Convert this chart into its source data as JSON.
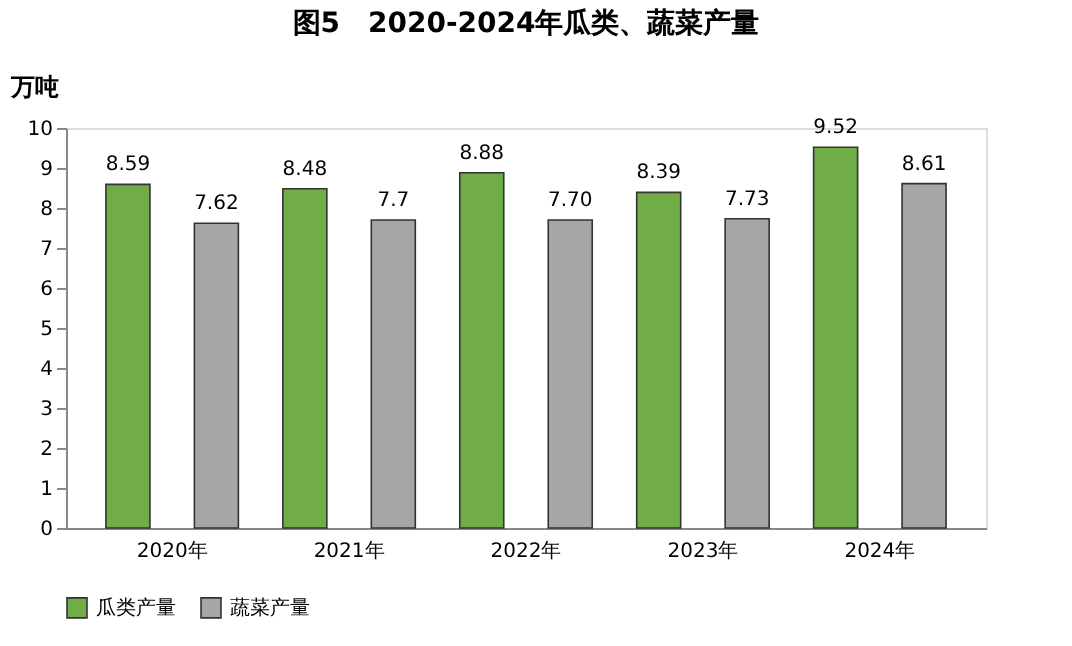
{
  "chart_data": {
    "type": "bar",
    "title": "图5　2020-2024年瓜类、蔬菜产量",
    "ylabel": "万吨",
    "categories": [
      "2020年",
      "2021年",
      "2022年",
      "2023年",
      "2024年"
    ],
    "series": [
      {
        "name": "瓜类产量",
        "color": "#70ad47",
        "values": [
          8.59,
          8.48,
          8.88,
          8.39,
          9.52
        ],
        "value_labels": [
          "8.59",
          "8.48",
          "8.88",
          "8.39",
          "9.52"
        ]
      },
      {
        "name": "蔬菜产量",
        "color": "#a6a6a6",
        "values": [
          7.62,
          7.7,
          7.7,
          7.73,
          8.61
        ],
        "value_labels": [
          "7.62",
          "7.7",
          "7.70",
          "7.73",
          "8.61"
        ]
      }
    ],
    "ylim": [
      0,
      10
    ],
    "yticks": [
      0,
      1,
      2,
      3,
      4,
      5,
      6,
      7,
      8,
      9,
      10
    ],
    "grid": false,
    "legend": "bottom"
  }
}
